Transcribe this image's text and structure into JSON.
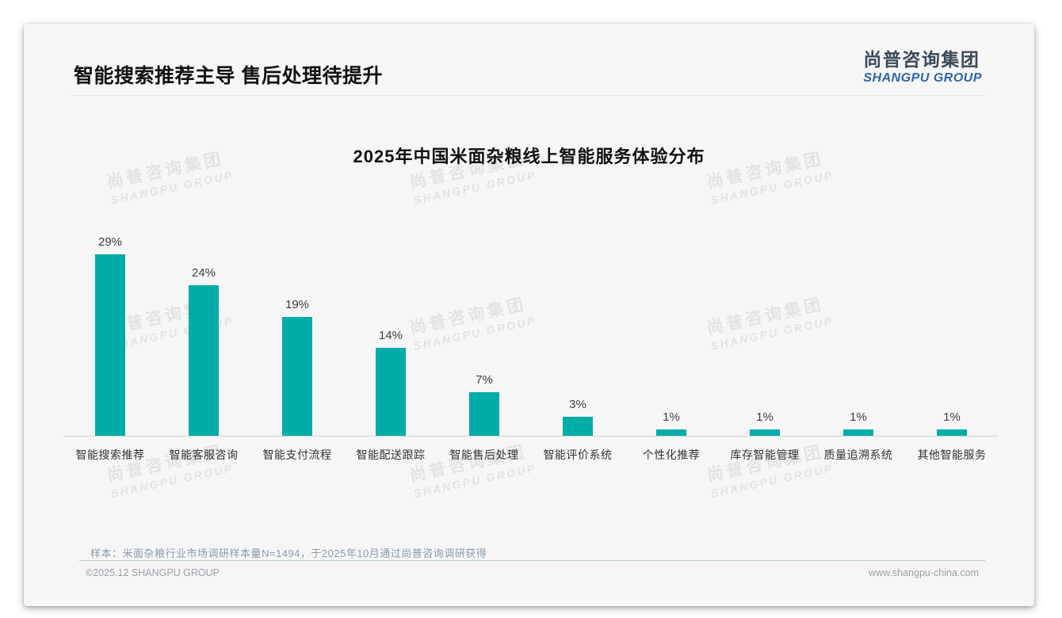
{
  "page": {
    "header_title": "智能搜索推荐主导 售后处理待提升",
    "logo": {
      "cn": "尚普咨询集团",
      "en": "SHANGPU GROUP"
    },
    "watermark": {
      "cn": "尚普咨询集团",
      "en": "SHANGPU GROUP"
    },
    "note": "样本：米面杂粮行业市场调研样本量N=1494，于2025年10月通过尚普咨询调研获得",
    "footer_left": "©2025.12 SHANGPU GROUP",
    "footer_right": "www.shangpu-china.com"
  },
  "colors": {
    "bar": "#00ACA8",
    "logo_cn": "#3d4a5a",
    "logo_en": "#2e65a9",
    "card_bg": "#f6f6f6",
    "note_text": "#8a9aad"
  },
  "chart_data": {
    "type": "bar",
    "title": "2025年中国米面杂粮线上智能服务体验分布",
    "categories": [
      "智能搜索推荐",
      "智能客服咨询",
      "智能支付流程",
      "智能配送跟踪",
      "智能售后处理",
      "智能评价系统",
      "个性化推荐",
      "库存智能管理",
      "质量追溯系统",
      "其他智能服务"
    ],
    "values": [
      29,
      24,
      19,
      14,
      7,
      3,
      1,
      1,
      1,
      1
    ],
    "value_labels": [
      "29%",
      "24%",
      "19%",
      "14%",
      "7%",
      "3%",
      "1%",
      "1%",
      "1%",
      "1%"
    ],
    "unit": "%",
    "xlabel": "",
    "ylabel": "",
    "ylim": [
      0,
      31
    ],
    "grid": false,
    "legend": "none",
    "bar_color": "#00ACA8"
  }
}
